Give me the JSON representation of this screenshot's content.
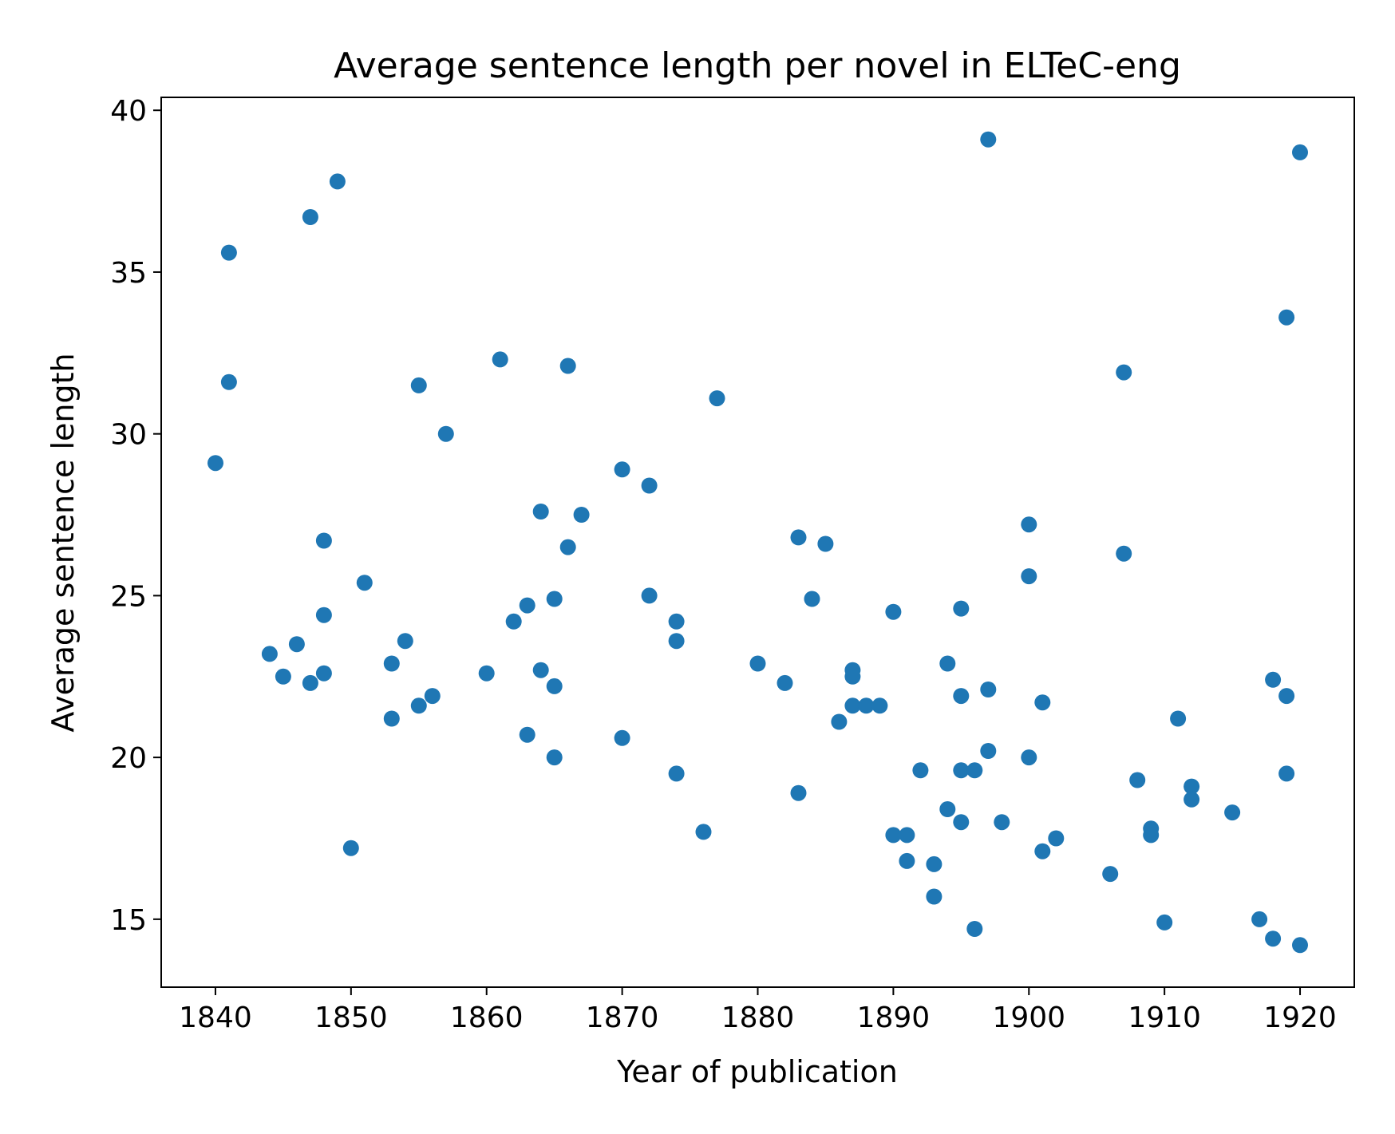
{
  "chart_data": {
    "type": "scatter",
    "title": "Average sentence length per novel in ELTeC-eng",
    "xlabel": "Year of publication",
    "ylabel": "Average sentence length",
    "xlim": [
      1836,
      1924
    ],
    "ylim": [
      12.9,
      40.4
    ],
    "xticks": [
      1840,
      1850,
      1860,
      1870,
      1880,
      1890,
      1900,
      1910,
      1920
    ],
    "yticks": [
      15,
      20,
      25,
      30,
      35,
      40
    ],
    "grid": false,
    "color": "#1f77b4",
    "points": [
      [
        1840,
        29.1
      ],
      [
        1841,
        35.6
      ],
      [
        1841,
        31.6
      ],
      [
        1844,
        23.2
      ],
      [
        1845,
        22.5
      ],
      [
        1846,
        23.5
      ],
      [
        1847,
        36.7
      ],
      [
        1847,
        22.3
      ],
      [
        1848,
        26.7
      ],
      [
        1848,
        24.4
      ],
      [
        1848,
        22.6
      ],
      [
        1849,
        37.8
      ],
      [
        1850,
        17.2
      ],
      [
        1851,
        25.4
      ],
      [
        1853,
        22.9
      ],
      [
        1853,
        21.2
      ],
      [
        1854,
        23.6
      ],
      [
        1855,
        31.5
      ],
      [
        1855,
        21.6
      ],
      [
        1856,
        21.9
      ],
      [
        1857,
        30.0
      ],
      [
        1860,
        22.6
      ],
      [
        1861,
        32.3
      ],
      [
        1862,
        24.2
      ],
      [
        1863,
        24.7
      ],
      [
        1863,
        20.7
      ],
      [
        1864,
        27.6
      ],
      [
        1864,
        22.7
      ],
      [
        1865,
        24.9
      ],
      [
        1865,
        22.2
      ],
      [
        1865,
        20.0
      ],
      [
        1866,
        32.1
      ],
      [
        1866,
        26.5
      ],
      [
        1867,
        27.5
      ],
      [
        1870,
        28.9
      ],
      [
        1870,
        20.6
      ],
      [
        1872,
        28.4
      ],
      [
        1872,
        25.0
      ],
      [
        1874,
        24.2
      ],
      [
        1874,
        23.6
      ],
      [
        1874,
        19.5
      ],
      [
        1876,
        17.7
      ],
      [
        1877,
        31.1
      ],
      [
        1880,
        22.9
      ],
      [
        1882,
        22.3
      ],
      [
        1883,
        26.8
      ],
      [
        1883,
        18.9
      ],
      [
        1884,
        24.9
      ],
      [
        1885,
        26.6
      ],
      [
        1886,
        21.1
      ],
      [
        1887,
        22.7
      ],
      [
        1887,
        22.5
      ],
      [
        1887,
        21.6
      ],
      [
        1888,
        21.6
      ],
      [
        1889,
        21.6
      ],
      [
        1890,
        24.5
      ],
      [
        1890,
        17.6
      ],
      [
        1891,
        17.6
      ],
      [
        1891,
        16.8
      ],
      [
        1892,
        19.6
      ],
      [
        1893,
        16.7
      ],
      [
        1893,
        15.7
      ],
      [
        1894,
        22.9
      ],
      [
        1894,
        18.4
      ],
      [
        1895,
        24.6
      ],
      [
        1895,
        21.9
      ],
      [
        1895,
        19.6
      ],
      [
        1895,
        18.0
      ],
      [
        1896,
        19.6
      ],
      [
        1896,
        14.7
      ],
      [
        1897,
        39.1
      ],
      [
        1897,
        22.1
      ],
      [
        1897,
        20.2
      ],
      [
        1898,
        18.0
      ],
      [
        1900,
        27.2
      ],
      [
        1900,
        25.6
      ],
      [
        1900,
        20.0
      ],
      [
        1901,
        21.7
      ],
      [
        1901,
        17.1
      ],
      [
        1902,
        17.5
      ],
      [
        1906,
        16.4
      ],
      [
        1907,
        31.9
      ],
      [
        1907,
        26.3
      ],
      [
        1908,
        19.3
      ],
      [
        1909,
        17.8
      ],
      [
        1909,
        17.6
      ],
      [
        1910,
        14.9
      ],
      [
        1911,
        21.2
      ],
      [
        1912,
        19.1
      ],
      [
        1912,
        18.7
      ],
      [
        1915,
        18.3
      ],
      [
        1917,
        15.0
      ],
      [
        1918,
        22.4
      ],
      [
        1918,
        14.4
      ],
      [
        1919,
        33.6
      ],
      [
        1919,
        21.9
      ],
      [
        1919,
        19.5
      ],
      [
        1920,
        38.7
      ],
      [
        1920,
        14.2
      ]
    ]
  }
}
